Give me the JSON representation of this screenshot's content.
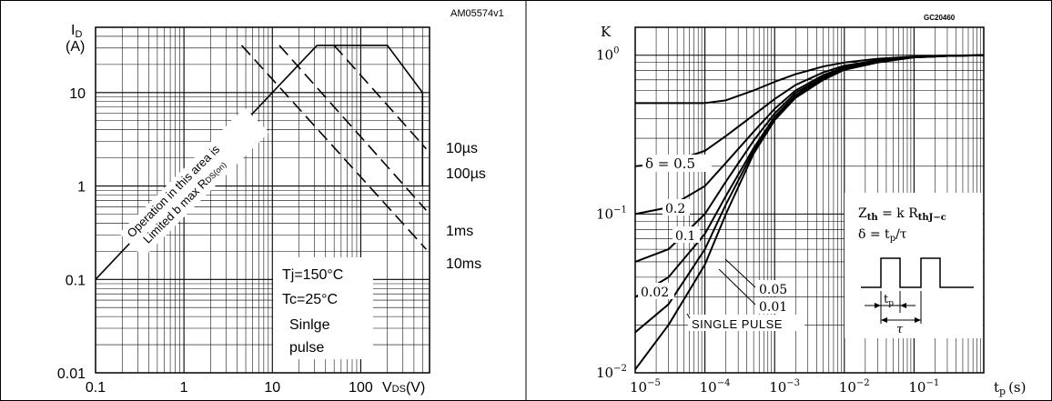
{
  "chart_data": [
    {
      "type": "line",
      "panel": "safe-operating-area",
      "code": "AM05574v1",
      "ylabel": "I",
      "ylabel_sub": "D",
      "yunit": "(A)",
      "xlabel": "V",
      "xlabel_sub": "DS",
      "xunit": "(V)",
      "xscale": "log",
      "yscale": "log",
      "xlim": [
        0.1,
        600
      ],
      "ylim": [
        0.01,
        50
      ],
      "x_ticks": [
        {
          "value": 0.1,
          "label": "0.1"
        },
        {
          "value": 1,
          "label": "1"
        },
        {
          "value": 10,
          "label": "10"
        },
        {
          "value": 100,
          "label": "100"
        }
      ],
      "y_ticks": [
        {
          "value": 0.01,
          "label": "0.01"
        },
        {
          "value": 0.1,
          "label": "0.1"
        },
        {
          "value": 1,
          "label": "1"
        },
        {
          "value": 10,
          "label": "10"
        }
      ],
      "grid": true,
      "rds_limit_line": {
        "x": [
          0.1,
          32
        ],
        "y": [
          0.1,
          32
        ]
      },
      "rds_annotation": [
        "Operation in this area is",
        "Limited b   max R"
      ],
      "rds_annotation_sub": "DS(on)",
      "series": [
        {
          "name": "10µs",
          "style": "solid",
          "x": [
            32,
            200,
            500,
            500
          ],
          "y": [
            32,
            32,
            10,
            1
          ]
        },
        {
          "name": "100µs",
          "style": "dashed",
          "x": [
            50,
            550
          ],
          "y": [
            32,
            2.5
          ]
        },
        {
          "name": "1ms",
          "style": "dashed",
          "x": [
            12,
            550
          ],
          "y": [
            32,
            0.55
          ]
        },
        {
          "name": "10ms",
          "style": "dashed",
          "x": [
            4.5,
            550
          ],
          "y": [
            32,
            0.21
          ]
        }
      ],
      "conditions": [
        "Tj=150°C",
        "Tc=25°C",
        "Sinlge",
        "pulse"
      ]
    },
    {
      "type": "line",
      "panel": "thermal-impedance",
      "code": "GC20460",
      "ylabel": "K",
      "xlabel": "t",
      "xlabel_sub": "p",
      "xunit": "(s)",
      "xscale": "log",
      "yscale": "log",
      "xlim": [
        1e-05,
        1
      ],
      "ylim": [
        0.01,
        1.5
      ],
      "x_ticks": [
        {
          "value": 1e-05,
          "label": "10",
          "exp": "−5"
        },
        {
          "value": 0.0001,
          "label": "10",
          "exp": "−4"
        },
        {
          "value": 0.001,
          "label": "10",
          "exp": "−3"
        },
        {
          "value": 0.01,
          "label": "10",
          "exp": "−2"
        },
        {
          "value": 0.1,
          "label": "10",
          "exp": "−1"
        }
      ],
      "y_ticks": [
        {
          "value": 0.01,
          "label": "10",
          "exp": "−2"
        },
        {
          "value": 0.1,
          "label": "10",
          "exp": "−1"
        },
        {
          "value": 1,
          "label": "10",
          "exp": "0"
        }
      ],
      "grid": true,
      "series": [
        {
          "name": "δ = 0.5",
          "x": [
            1e-05,
            0.0001,
            0.0002,
            0.0005,
            0.001,
            0.002,
            0.005,
            0.01,
            0.03,
            0.1,
            0.3,
            1
          ],
          "y": [
            0.5,
            0.5,
            0.52,
            0.6,
            0.68,
            0.76,
            0.85,
            0.9,
            0.95,
            0.98,
            0.995,
            1
          ]
        },
        {
          "name": "0.2",
          "x": [
            1e-05,
            3e-05,
            0.0001,
            0.0002,
            0.0005,
            0.001,
            0.002,
            0.005,
            0.01,
            0.03,
            0.1,
            0.3,
            1
          ],
          "y": [
            0.2,
            0.21,
            0.25,
            0.31,
            0.42,
            0.53,
            0.65,
            0.78,
            0.86,
            0.93,
            0.98,
            0.995,
            1
          ]
        },
        {
          "name": "0.1",
          "x": [
            1e-05,
            3e-05,
            0.0001,
            0.0002,
            0.0005,
            0.001,
            0.002,
            0.005,
            0.01,
            0.03,
            0.1,
            0.3,
            1
          ],
          "y": [
            0.1,
            0.11,
            0.15,
            0.21,
            0.33,
            0.46,
            0.6,
            0.75,
            0.84,
            0.92,
            0.97,
            0.99,
            1
          ]
        },
        {
          "name": "0.05",
          "x": [
            1e-05,
            3e-05,
            0.0001,
            0.0002,
            0.0005,
            0.001,
            0.002,
            0.005,
            0.01,
            0.03,
            0.1,
            0.3,
            1
          ],
          "y": [
            0.05,
            0.06,
            0.1,
            0.16,
            0.29,
            0.43,
            0.58,
            0.73,
            0.83,
            0.92,
            0.97,
            0.99,
            1
          ]
        },
        {
          "name": "0.02",
          "x": [
            1e-05,
            3e-05,
            0.0001,
            0.0002,
            0.0005,
            0.001,
            0.002,
            0.005,
            0.01,
            0.03,
            0.1,
            0.3,
            1
          ],
          "y": [
            0.03,
            0.04,
            0.075,
            0.13,
            0.26,
            0.41,
            0.56,
            0.72,
            0.82,
            0.91,
            0.97,
            0.99,
            1
          ]
        },
        {
          "name": "0.01",
          "x": [
            1e-05,
            3e-05,
            0.0001,
            0.0002,
            0.0005,
            0.001,
            0.002,
            0.005,
            0.01,
            0.03,
            0.1,
            0.3,
            1
          ],
          "y": [
            0.018,
            0.027,
            0.06,
            0.115,
            0.25,
            0.4,
            0.55,
            0.71,
            0.82,
            0.91,
            0.97,
            0.99,
            1
          ]
        },
        {
          "name": "SINGLE PULSE",
          "x": [
            1e-05,
            3e-05,
            0.0001,
            0.0002,
            0.0005,
            0.001,
            0.002,
            0.005,
            0.01,
            0.03,
            0.1,
            0.3,
            1
          ],
          "y": [
            0.0105,
            0.02,
            0.048,
            0.1,
            0.24,
            0.39,
            0.54,
            0.7,
            0.81,
            0.9,
            0.97,
            0.99,
            1
          ]
        }
      ],
      "curve_labels": [
        "δ = 0.5",
        "0.2",
        "0.1",
        "0.02",
        "0.05",
        "0.01",
        "SINGLE PULSE"
      ],
      "formula": {
        "z_base": "Z",
        "z_sub": "th",
        "z_rest": " = k R",
        "r_sub": "thJ−c",
        "delta_text": "δ = t",
        "delta_sub": "p",
        "delta_rest": "/τ"
      },
      "pulse_labels": {
        "tp": "t",
        "tp_sub": "p",
        "tau": "τ"
      }
    }
  ]
}
